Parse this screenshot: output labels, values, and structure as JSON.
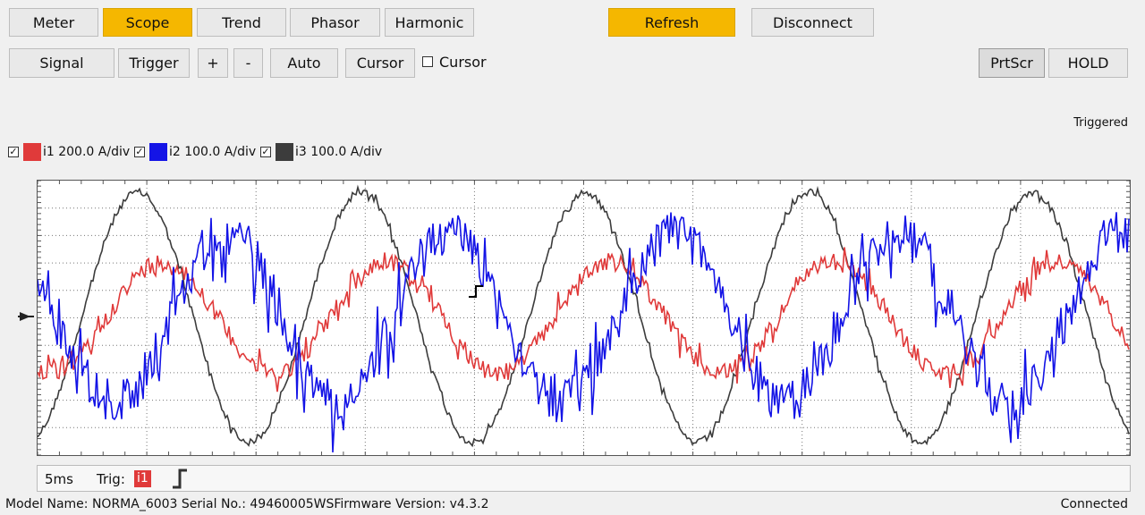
{
  "tabs": [
    {
      "label": "Meter",
      "active": false
    },
    {
      "label": "Scope",
      "active": true
    },
    {
      "label": "Trend",
      "active": false
    },
    {
      "label": "Phasor",
      "active": false
    },
    {
      "label": "Harmonic",
      "active": false
    }
  ],
  "actions": {
    "refresh": "Refresh",
    "disconnect": "Disconnect"
  },
  "toolbar": {
    "signal": "Signal",
    "trigger": "Trigger",
    "plus": "+",
    "minus": "-",
    "auto": "Auto",
    "cursor": "Cursor",
    "cursor_check_label": "Cursor",
    "prtscr": "PrtScr",
    "hold": "HOLD"
  },
  "status_text": "Triggered",
  "channels": [
    {
      "label": "i1 200.0 A/div",
      "color": "#e03a3a",
      "checked": true
    },
    {
      "label": "i2 100.0 A/div",
      "color": "#1414e6",
      "checked": true
    },
    {
      "label": "i3 100.0 A/div",
      "color": "#3c3c3c",
      "checked": true
    }
  ],
  "footer": {
    "timebase": "5ms",
    "trig_label": "Trig:",
    "trig_channel": "i1"
  },
  "statusbar": {
    "device_info": "Model Name:  NORMA_6003 Serial No.:  49460005WSFirmware Version:  v4.3.2",
    "connection": "Connected"
  }
}
